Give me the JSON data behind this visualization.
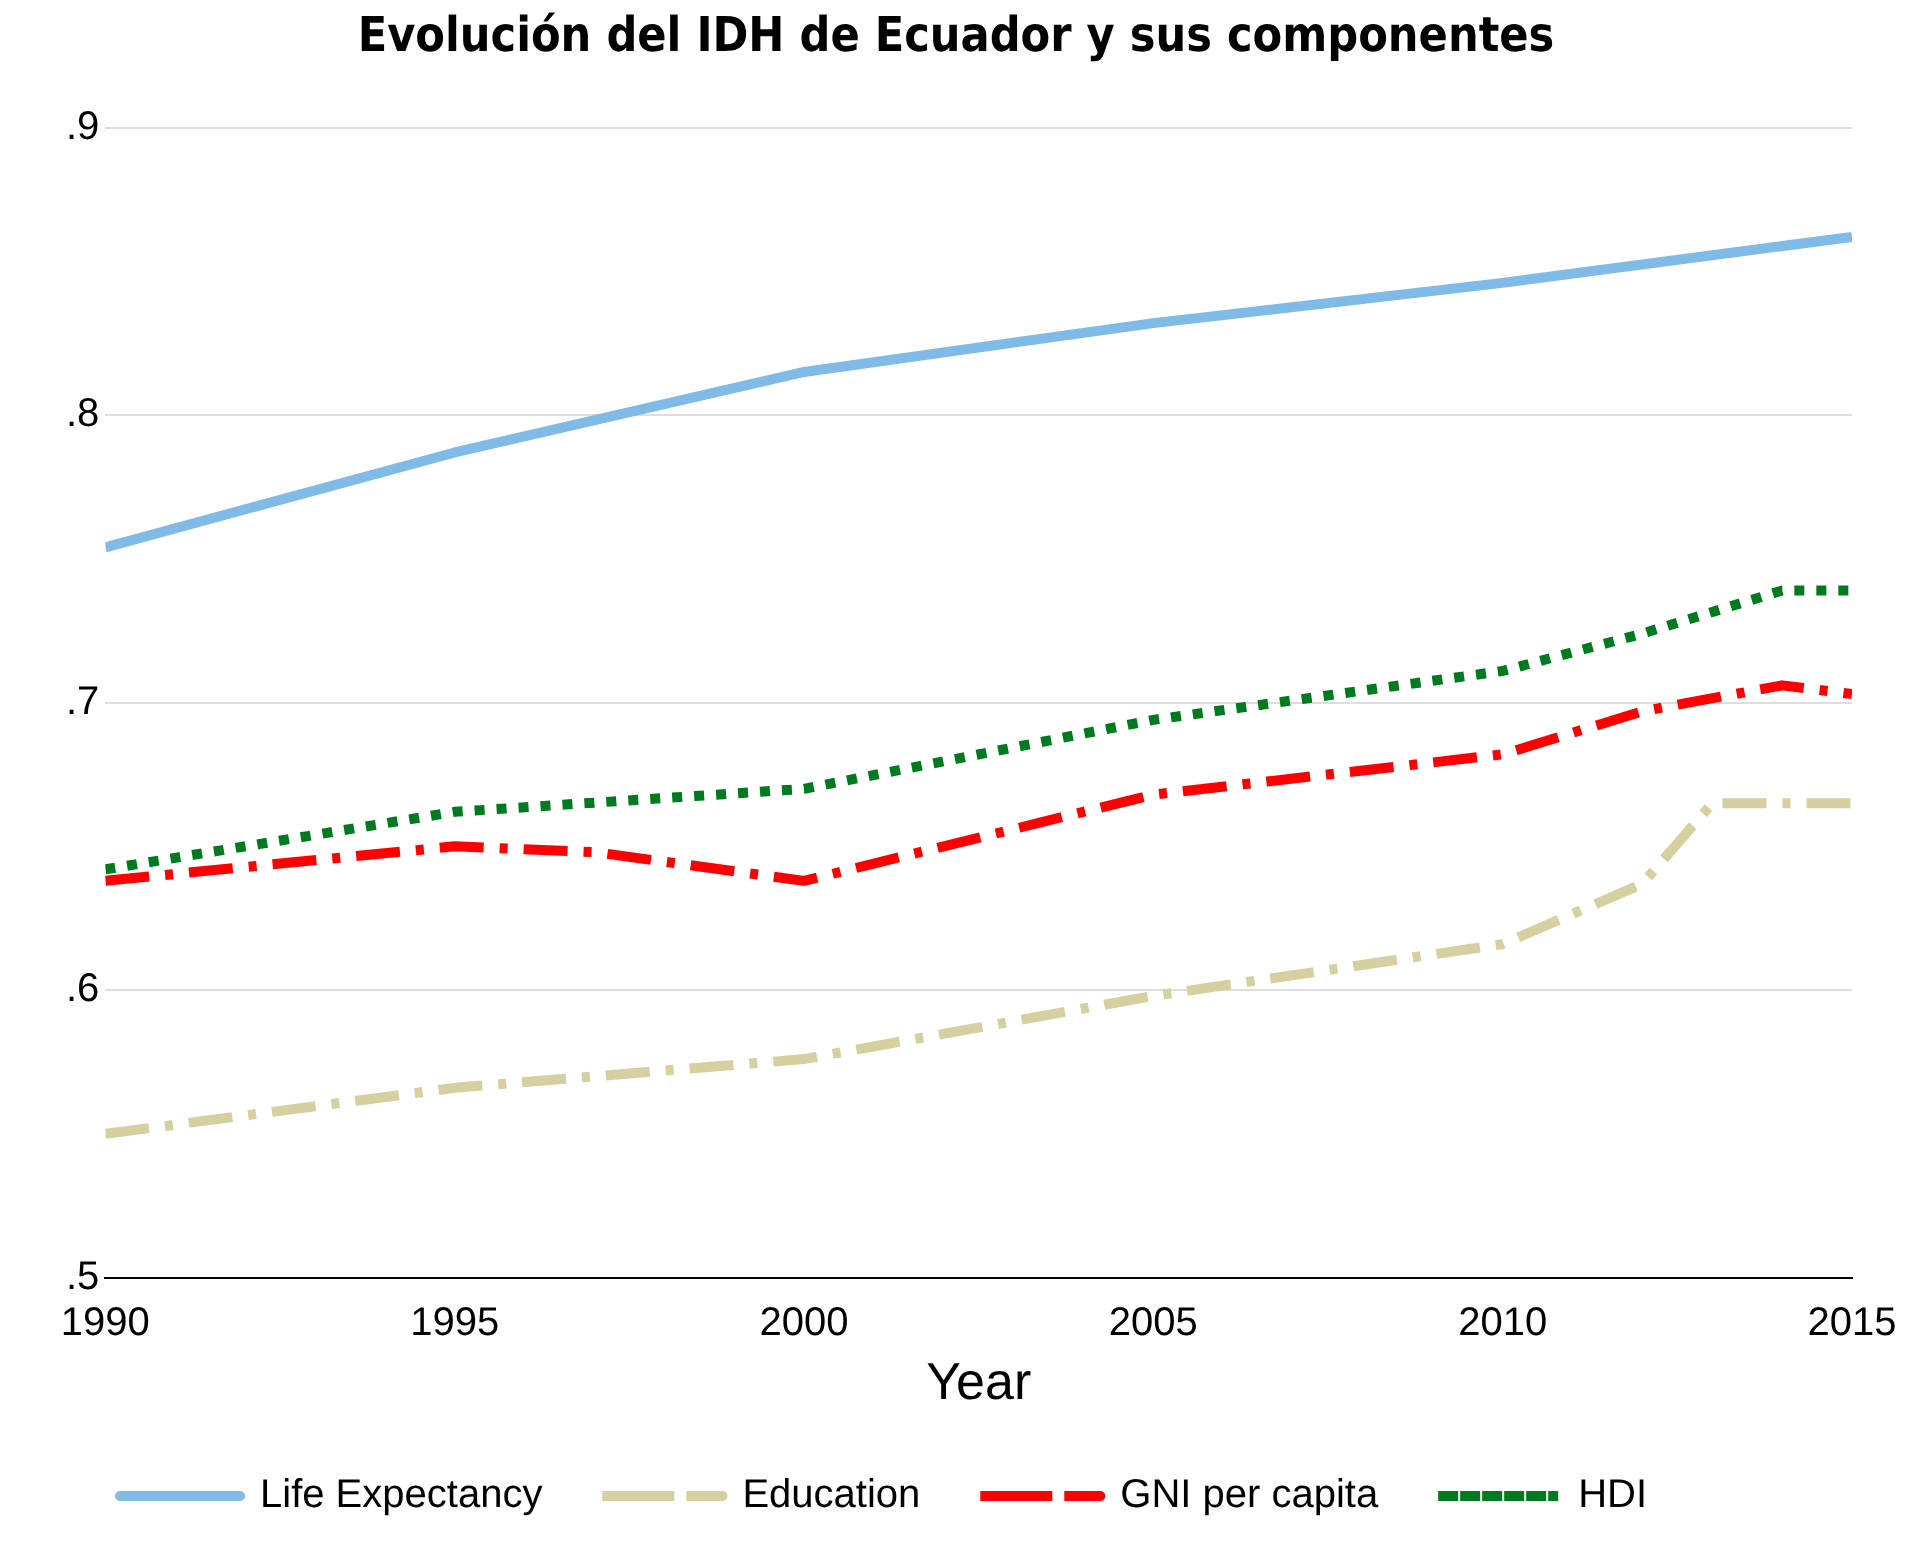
{
  "chart_data": {
    "type": "line",
    "title": "Evolución del IDH de Ecuador y sus componentes",
    "xlabel": "Year",
    "xlim": [
      1990,
      2015
    ],
    "xticks": [
      1990,
      1995,
      2000,
      2005,
      2010,
      2015
    ],
    "ylim": [
      0.5,
      0.9
    ],
    "yticks": [
      {
        "value": 0.5,
        "label": ".5"
      },
      {
        "value": 0.6,
        "label": ".6"
      },
      {
        "value": 0.7,
        "label": ".7"
      },
      {
        "value": 0.8,
        "label": ".8"
      },
      {
        "value": 0.9,
        "label": ".9"
      }
    ],
    "grid": "y",
    "legend": "bottom",
    "marker": "none",
    "series": [
      {
        "name": "Life Expectancy",
        "color": "#7fbbe6",
        "line_style": "solid",
        "x": [
          1990,
          1995,
          2000,
          2005,
          2010,
          2015
        ],
        "values": [
          0.754,
          0.787,
          0.815,
          0.832,
          0.846,
          0.862
        ]
      },
      {
        "name": "Education",
        "color": "#d6cfa0",
        "line_style": "dashed",
        "x": [
          1990,
          1995,
          2000,
          2005,
          2010,
          2012,
          2013,
          2015
        ],
        "values": [
          0.55,
          0.566,
          0.576,
          0.598,
          0.616,
          0.637,
          0.665,
          0.665
        ]
      },
      {
        "name": "GNI per capita",
        "color": "#ff0000",
        "line_style": "dashed",
        "x": [
          1990,
          1995,
          1997,
          2000,
          2005,
          2010,
          2012,
          2014,
          2015
        ],
        "values": [
          0.638,
          0.65,
          0.648,
          0.638,
          0.668,
          0.682,
          0.697,
          0.706,
          0.703
        ]
      },
      {
        "name": "HDI",
        "color": "#007a1e",
        "line_style": "dotted",
        "x": [
          1990,
          1995,
          2000,
          2005,
          2010,
          2012,
          2014,
          2015
        ],
        "values": [
          0.642,
          0.662,
          0.67,
          0.694,
          0.711,
          0.724,
          0.739,
          0.739
        ]
      }
    ]
  }
}
